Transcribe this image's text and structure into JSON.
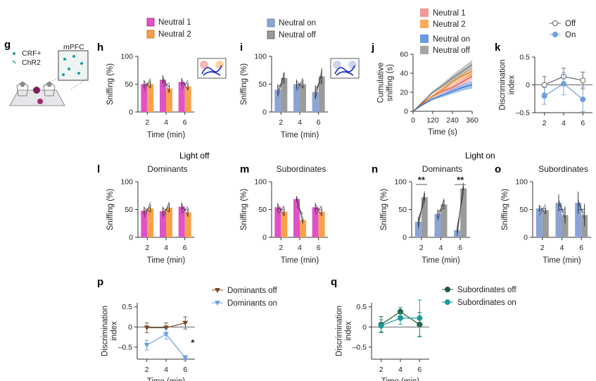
{
  "colors": {
    "magenta": "#e052c8",
    "orange": "#f7a24b",
    "blue_bar": "#8aa4d6",
    "gray_bar": "#9b9b9b",
    "off_line": "#666666",
    "on_line": "#6fa0dc",
    "dom_off": "#7a4a2a",
    "dom_on": "#6fa0dc",
    "sub_off": "#1b5e3a",
    "sub_on": "#1e9a9a"
  },
  "labels": {
    "g": "g",
    "h": "h",
    "i": "i",
    "j": "j",
    "k": "k",
    "l": "l",
    "m": "m",
    "n": "n",
    "o": "o",
    "p": "p",
    "q": "q",
    "light_off": "Light off",
    "light_on": "Light on",
    "crf": "CRF+",
    "chr2": "ChR2",
    "mpfc": "mPFC"
  },
  "chart_data": [
    {
      "id": "h",
      "type": "bar",
      "title": "",
      "categories": [
        "2",
        "4",
        "6"
      ],
      "series": [
        {
          "name": "Neutral 1",
          "values": [
            50,
            58,
            54
          ],
          "err": [
            7,
            8,
            7
          ]
        },
        {
          "name": "Neutral 2",
          "values": [
            50,
            42,
            46
          ],
          "err": [
            7,
            8,
            7
          ]
        }
      ],
      "xlabel": "Time (min)",
      "ylabel": "Sniffing (%)",
      "ylim": [
        0,
        100
      ],
      "yticks": [
        0,
        50,
        100
      ],
      "legend": [
        "Neutral 1",
        "Neutral 2"
      ]
    },
    {
      "id": "i",
      "type": "bar",
      "title": "",
      "categories": [
        "2",
        "4",
        "6"
      ],
      "series": [
        {
          "name": "Neutral on",
          "values": [
            40,
            50,
            36
          ],
          "err": [
            10,
            8,
            12
          ]
        },
        {
          "name": "Neutral off",
          "values": [
            61,
            50,
            64
          ],
          "err": [
            10,
            8,
            14
          ]
        }
      ],
      "xlabel": "Time (min)",
      "ylabel": "Sniffing (%)",
      "ylim": [
        0,
        100
      ],
      "yticks": [
        0,
        50,
        100
      ],
      "legend": [
        "Neutral on",
        "Neutral off"
      ]
    },
    {
      "id": "j",
      "type": "area",
      "title": "",
      "x": [
        0,
        60,
        120,
        180,
        240,
        300,
        360
      ],
      "series": [
        {
          "name": "Neutral 1",
          "values": [
            0,
            9,
            16,
            21,
            25,
            31,
            37
          ],
          "err": 4
        },
        {
          "name": "Neutral 2",
          "values": [
            0,
            8,
            16,
            23,
            31,
            37,
            42
          ],
          "err": 4
        },
        {
          "name": "Neutral on",
          "values": [
            0,
            7,
            13,
            17,
            21,
            25,
            28
          ],
          "err": 4
        },
        {
          "name": "Neutral off",
          "values": [
            0,
            10,
            20,
            27,
            35,
            42,
            49
          ],
          "err": 5
        }
      ],
      "xlabel": "Time (s)",
      "ylabel": "Cumulative sniffing (s)",
      "xlim": [
        0,
        360
      ],
      "ylim": [
        0,
        60
      ],
      "xticks": [
        0,
        120,
        240,
        360
      ],
      "yticks": [
        0,
        20,
        40,
        60
      ],
      "legend": [
        "Neutral 1",
        "Neutral 2",
        "Neutral on",
        "Neutral off"
      ]
    },
    {
      "id": "k",
      "type": "line",
      "title": "",
      "categories": [
        "2",
        "4",
        "6"
      ],
      "series": [
        {
          "name": "Off",
          "values": [
            0.0,
            0.15,
            0.08
          ],
          "err": [
            0.15,
            0.15,
            0.15
          ]
        },
        {
          "name": "On",
          "values": [
            -0.2,
            0.02,
            -0.26
          ],
          "err": [
            0.15,
            0.2,
            0.22
          ]
        }
      ],
      "xlabel": "",
      "ylabel": "Discrimination index",
      "ylim": [
        -0.5,
        0.5
      ],
      "yticks": [
        0.5,
        0,
        -0.5
      ],
      "legend": [
        "Off",
        "On"
      ]
    },
    {
      "id": "l",
      "type": "bar",
      "title": "Dominants",
      "categories": [
        "2",
        "4",
        "6"
      ],
      "series": [
        {
          "name": "Neutral 1",
          "values": [
            48,
            47,
            55
          ],
          "err": [
            7,
            8,
            8
          ]
        },
        {
          "name": "Neutral 2",
          "values": [
            52,
            53,
            45
          ],
          "err": [
            7,
            8,
            8
          ]
        }
      ],
      "xlabel": "Time (min)",
      "ylabel": "Sniffing (%)",
      "ylim": [
        0,
        100
      ],
      "yticks": [
        0,
        50,
        100
      ]
    },
    {
      "id": "m",
      "type": "bar",
      "title": "Subordinates",
      "categories": [
        "2",
        "4",
        "6"
      ],
      "series": [
        {
          "name": "Neutral 1",
          "values": [
            54,
            69,
            54
          ],
          "err": [
            8,
            4,
            8
          ]
        },
        {
          "name": "Neutral 2",
          "values": [
            46,
            31,
            46
          ],
          "err": [
            8,
            4,
            8
          ]
        }
      ],
      "xlabel": "Time (min)",
      "ylabel": "Sniffing (%)",
      "ylim": [
        0,
        100
      ],
      "yticks": [
        0,
        50,
        100
      ]
    },
    {
      "id": "n",
      "type": "bar",
      "title": "Dominants",
      "categories": [
        "2",
        "4",
        "6"
      ],
      "series": [
        {
          "name": "Neutral on",
          "values": [
            28,
            42,
            13
          ],
          "err": [
            8,
            8,
            5
          ]
        },
        {
          "name": "Neutral off",
          "values": [
            72,
            59,
            88
          ],
          "err": [
            8,
            8,
            5
          ]
        }
      ],
      "xlabel": "Time (min)",
      "ylabel": "Sniffing (%)",
      "ylim": [
        0,
        100
      ],
      "yticks": [
        0,
        50,
        100
      ],
      "annotations": [
        {
          "category": "2",
          "text": "**"
        },
        {
          "category": "6",
          "text": "**"
        }
      ]
    },
    {
      "id": "o",
      "type": "bar",
      "title": "Subordinates",
      "categories": [
        "2",
        "4",
        "6"
      ],
      "series": [
        {
          "name": "Neutral on",
          "values": [
            52,
            62,
            62
          ],
          "err": [
            6,
            15,
            20
          ]
        },
        {
          "name": "Neutral off",
          "values": [
            49,
            40,
            40
          ],
          "err": [
            6,
            15,
            20
          ]
        }
      ],
      "xlabel": "Time (min)",
      "ylabel": "Sniffing (%)",
      "ylim": [
        0,
        100
      ],
      "yticks": [
        0,
        50,
        100
      ]
    },
    {
      "id": "p",
      "type": "line",
      "title": "",
      "categories": [
        "2",
        "4",
        "6"
      ],
      "series": [
        {
          "name": "Dominants off",
          "values": [
            -0.02,
            -0.02,
            0.1
          ],
          "err": [
            0.12,
            0.12,
            0.15
          ]
        },
        {
          "name": "Dominants on",
          "values": [
            -0.45,
            -0.18,
            -0.77
          ],
          "err": [
            0.12,
            0.12,
            0.06
          ]
        }
      ],
      "xlabel": "Time (min)",
      "ylabel": "Discrimination index",
      "ylim": [
        -0.8,
        0.6
      ],
      "yticks": [
        0.5,
        0,
        -0.5
      ],
      "legend": [
        "Dominants off",
        "Dominants on"
      ],
      "annotations": [
        {
          "category": "6",
          "text": "*"
        }
      ]
    },
    {
      "id": "q",
      "type": "line",
      "title": "",
      "categories": [
        "2",
        "4",
        "6"
      ],
      "series": [
        {
          "name": "Subordinates off",
          "values": [
            0.06,
            0.38,
            0.06
          ],
          "err": [
            0.2,
            0.1,
            0.3
          ]
        },
        {
          "name": "Subordinates on",
          "values": [
            0.03,
            0.22,
            0.22
          ],
          "err": [
            0.15,
            0.15,
            0.45
          ]
        }
      ],
      "xlabel": "Time (min)",
      "ylabel": "Discrimination index",
      "ylim": [
        -0.8,
        0.6
      ],
      "yticks": [
        0.5,
        0,
        -0.5
      ],
      "legend": [
        "Subordinates off",
        "Subordinates on"
      ]
    }
  ]
}
